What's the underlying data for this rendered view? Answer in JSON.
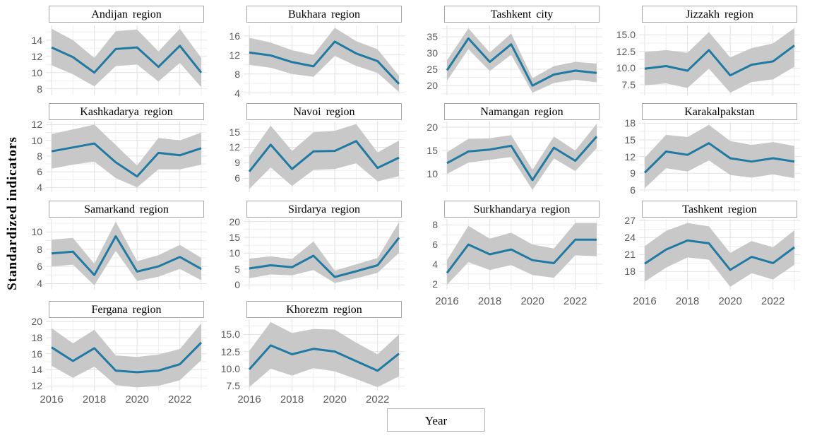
{
  "chart_data": {
    "type": "line",
    "title": "",
    "xlabel": "Year",
    "ylabel": "Standardized indicators",
    "x": [
      2016,
      2017,
      2018,
      2019,
      2020,
      2021,
      2022,
      2023
    ],
    "x_major_ticks": [
      2016,
      2018,
      2020,
      2022
    ],
    "x_tick_labels": [
      "2016",
      "2018",
      "2020",
      "2022"
    ],
    "line_color": "#1f7aa3",
    "band_color": "#c8c8c8",
    "grid_major_color": "#e2e2e2",
    "grid_minor_color": "#eeeeee",
    "legend": "none",
    "panels": [
      {
        "title": "Andijan region",
        "row": 1,
        "col": 1,
        "show_x_axis": false,
        "y_ticks": [
          8,
          10,
          12,
          14
        ],
        "y_tick_labels": [
          "8",
          "10",
          "12",
          "14"
        ],
        "y_range": [
          7.2,
          15.8
        ],
        "values": [
          13.1,
          11.9,
          10.0,
          12.9,
          13.1,
          10.7,
          13.3,
          10.0
        ],
        "lower": [
          10.9,
          9.8,
          8.3,
          10.8,
          11.0,
          8.9,
          11.2,
          8.2
        ],
        "upper": [
          15.4,
          14.0,
          11.8,
          15.1,
          15.3,
          12.6,
          15.4,
          11.8
        ]
      },
      {
        "title": "Bukhara region",
        "row": 1,
        "col": 2,
        "show_x_axis": false,
        "y_ticks": [
          4,
          8,
          12,
          16
        ],
        "y_tick_labels": [
          "4",
          "8",
          "12",
          "16"
        ],
        "y_range": [
          3.5,
          18.2
        ],
        "values": [
          12.5,
          11.9,
          10.5,
          9.6,
          14.8,
          12.3,
          10.7,
          5.9
        ],
        "lower": [
          9.9,
          9.3,
          8.0,
          7.4,
          11.8,
          9.7,
          8.2,
          4.2
        ],
        "upper": [
          15.6,
          14.6,
          13.0,
          12.0,
          17.7,
          14.9,
          13.2,
          7.6
        ]
      },
      {
        "title": "Tashkent city",
        "row": 1,
        "col": 3,
        "show_x_axis": false,
        "y_ticks": [
          20,
          25,
          30,
          35
        ],
        "y_tick_labels": [
          "20",
          "25",
          "30",
          "35"
        ],
        "y_range": [
          17.0,
          38.5
        ],
        "values": [
          24.7,
          34.5,
          27.3,
          32.7,
          20.0,
          23.4,
          24.6,
          23.9
        ],
        "lower": [
          21.5,
          31.2,
          24.5,
          29.5,
          17.8,
          20.8,
          21.8,
          21.0
        ],
        "upper": [
          27.8,
          37.6,
          30.2,
          36.0,
          22.3,
          26.0,
          27.3,
          26.8
        ]
      },
      {
        "title": "Jizzakh region",
        "row": 1,
        "col": 4,
        "show_x_axis": false,
        "y_ticks": [
          7.5,
          10.0,
          12.5,
          15.0
        ],
        "y_tick_labels": [
          "7.5",
          "10.0",
          "12.5",
          "15.0"
        ],
        "y_range": [
          5.9,
          16.4
        ],
        "values": [
          9.9,
          10.3,
          9.6,
          12.7,
          8.9,
          10.5,
          11.0,
          13.4
        ],
        "lower": [
          7.4,
          7.7,
          7.0,
          9.9,
          6.3,
          7.9,
          8.3,
          10.2
        ],
        "upper": [
          12.4,
          12.7,
          12.3,
          15.4,
          11.6,
          13.0,
          13.7,
          16.0
        ]
      },
      {
        "title": "Kashkadarya region",
        "row": 2,
        "col": 1,
        "show_x_axis": false,
        "y_ticks": [
          4,
          6,
          8,
          10,
          12
        ],
        "y_tick_labels": [
          "4",
          "6",
          "8",
          "10",
          "12"
        ],
        "y_range": [
          3.4,
          12.4
        ],
        "values": [
          8.6,
          9.1,
          9.6,
          7.2,
          5.4,
          8.4,
          8.1,
          9.0
        ],
        "lower": [
          6.4,
          6.9,
          7.3,
          5.2,
          4.0,
          6.3,
          6.3,
          6.9
        ],
        "upper": [
          10.8,
          11.4,
          12.0,
          9.4,
          6.8,
          10.3,
          10.0,
          11.0
        ]
      },
      {
        "title": "Navoi region",
        "row": 2,
        "col": 2,
        "show_x_axis": false,
        "y_ticks": [
          6,
          9,
          12,
          15
        ],
        "y_tick_labels": [
          "6",
          "9",
          "12",
          "15"
        ],
        "y_range": [
          3.3,
          17.0
        ],
        "values": [
          7.3,
          12.5,
          7.8,
          11.2,
          11.3,
          13.2,
          8.0,
          10.0
        ],
        "lower": [
          3.9,
          8.1,
          4.5,
          7.6,
          7.8,
          8.9,
          5.4,
          6.4
        ],
        "upper": [
          10.3,
          16.2,
          11.3,
          14.9,
          15.2,
          16.5,
          11.0,
          13.3
        ]
      },
      {
        "title": "Namangan region",
        "row": 2,
        "col": 3,
        "show_x_axis": false,
        "y_ticks": [
          10,
          15,
          20
        ],
        "y_tick_labels": [
          "10",
          "15",
          "20"
        ],
        "y_range": [
          6.1,
          21.2
        ],
        "values": [
          12.3,
          14.8,
          15.2,
          16.0,
          8.7,
          15.6,
          12.8,
          18.0
        ],
        "lower": [
          10.0,
          12.4,
          13.0,
          13.6,
          6.6,
          13.3,
          10.6,
          15.5
        ],
        "upper": [
          14.6,
          17.5,
          17.6,
          18.3,
          10.9,
          18.0,
          15.0,
          20.7
        ]
      },
      {
        "title": "Karakalpakstan",
        "row": 2,
        "col": 4,
        "show_x_axis": false,
        "y_ticks": [
          6,
          9,
          12,
          15,
          18
        ],
        "y_tick_labels": [
          "6",
          "9",
          "12",
          "15",
          "18"
        ],
        "y_range": [
          5.6,
          18.3
        ],
        "values": [
          9.1,
          12.9,
          12.3,
          14.4,
          11.7,
          11.1,
          11.7,
          11.1
        ],
        "lower": [
          6.3,
          9.9,
          9.3,
          11.3,
          8.7,
          8.2,
          8.8,
          8.1
        ],
        "upper": [
          11.8,
          15.9,
          15.5,
          17.7,
          14.8,
          14.1,
          14.6,
          13.9
        ]
      },
      {
        "title": "Samarkand region",
        "row": 3,
        "col": 1,
        "show_x_axis": false,
        "y_ticks": [
          4,
          6,
          8,
          10
        ],
        "y_tick_labels": [
          "4",
          "6",
          "8",
          "10"
        ],
        "y_range": [
          3.3,
          11.5
        ],
        "values": [
          7.5,
          7.7,
          5.0,
          9.5,
          5.4,
          6.0,
          7.1,
          5.7
        ],
        "lower": [
          6.0,
          6.2,
          3.8,
          7.8,
          4.3,
          4.8,
          5.7,
          4.4
        ],
        "upper": [
          9.1,
          9.3,
          6.3,
          11.2,
          6.6,
          7.3,
          8.5,
          7.0
        ]
      },
      {
        "title": "Sirdarya region",
        "row": 3,
        "col": 2,
        "show_x_axis": false,
        "y_ticks": [
          0,
          5,
          10,
          15,
          20
        ],
        "y_tick_labels": [
          "0",
          "5",
          "10",
          "15",
          "20"
        ],
        "y_range": [
          -1.5,
          20.8
        ],
        "values": [
          5.2,
          6.2,
          5.6,
          9.2,
          2.5,
          4.3,
          6.2,
          14.9
        ],
        "lower": [
          2.1,
          3.3,
          3.0,
          4.7,
          0.6,
          2.1,
          3.8,
          10.1
        ],
        "upper": [
          8.3,
          9.0,
          8.2,
          13.7,
          4.5,
          6.5,
          8.5,
          19.8
        ]
      },
      {
        "title": "Surkhandarya region",
        "row": 3,
        "col": 3,
        "show_x_axis": true,
        "y_ticks": [
          2,
          4,
          6,
          8
        ],
        "y_tick_labels": [
          "2",
          "4",
          "6",
          "8"
        ],
        "y_range": [
          1.4,
          8.6
        ],
        "values": [
          3.1,
          6.0,
          5.0,
          5.5,
          4.4,
          4.1,
          6.5,
          6.5
        ],
        "lower": [
          1.9,
          4.2,
          3.4,
          3.9,
          2.9,
          2.6,
          4.9,
          4.8
        ],
        "upper": [
          4.4,
          7.9,
          6.6,
          7.2,
          6.0,
          5.6,
          8.2,
          8.2
        ]
      },
      {
        "title": "Tashkent region",
        "row": 3,
        "col": 4,
        "show_x_axis": true,
        "y_ticks": [
          18,
          21,
          24,
          27
        ],
        "y_tick_labels": [
          "18",
          "21",
          "24",
          "27"
        ],
        "y_range": [
          14.8,
          27.3
        ],
        "values": [
          19.4,
          21.9,
          23.5,
          23.0,
          18.3,
          20.6,
          19.5,
          22.3
        ],
        "lower": [
          16.2,
          18.7,
          20.5,
          20.1,
          15.3,
          17.7,
          16.6,
          19.2
        ],
        "upper": [
          22.5,
          25.2,
          26.6,
          26.0,
          21.3,
          23.4,
          22.3,
          25.3
        ]
      },
      {
        "title": "Fergana region",
        "row": 4,
        "col": 1,
        "show_x_axis": true,
        "y_ticks": [
          12,
          14,
          16,
          18,
          20
        ],
        "y_tick_labels": [
          "12",
          "14",
          "16",
          "18",
          "20"
        ],
        "y_range": [
          11.4,
          20.3
        ],
        "values": [
          16.8,
          15.1,
          16.7,
          13.9,
          13.7,
          13.9,
          14.7,
          17.4
        ],
        "lower": [
          14.5,
          13.0,
          14.4,
          12.1,
          11.8,
          12.0,
          12.7,
          15.2
        ],
        "upper": [
          19.2,
          17.3,
          19.0,
          15.8,
          15.6,
          15.9,
          16.6,
          19.8
        ]
      },
      {
        "title": "Khorezm region",
        "row": 4,
        "col": 2,
        "show_x_axis": true,
        "y_ticks": [
          7.5,
          10.0,
          12.5,
          15.0
        ],
        "y_tick_labels": [
          "7.5",
          "10.0",
          "12.5",
          "15.0"
        ],
        "y_range": [
          6.8,
          17.2
        ],
        "values": [
          9.9,
          13.4,
          12.1,
          12.9,
          12.5,
          11.1,
          9.7,
          12.2
        ],
        "lower": [
          7.3,
          10.0,
          9.0,
          10.1,
          9.6,
          8.5,
          7.3,
          8.9
        ],
        "upper": [
          12.6,
          16.8,
          15.2,
          15.8,
          15.7,
          13.8,
          12.1,
          15.0
        ]
      }
    ]
  }
}
